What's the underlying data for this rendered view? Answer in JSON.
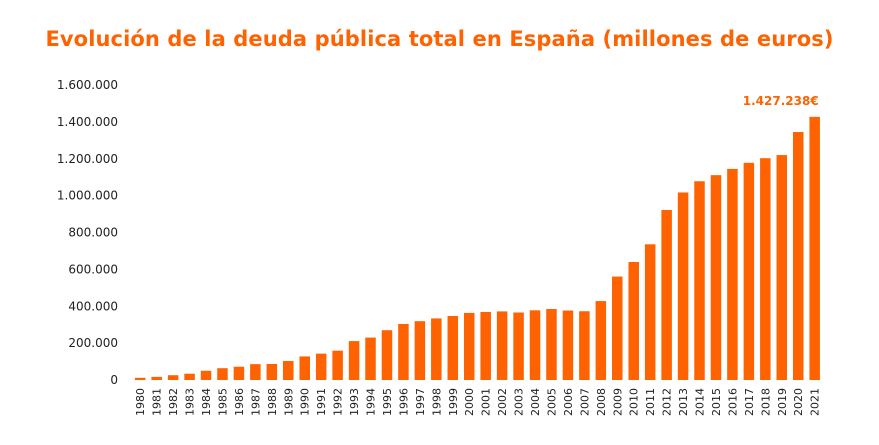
{
  "chart_data": {
    "type": "bar",
    "title": "Evolución de la deuda pública total en España (millones de euros)",
    "xlabel": "",
    "ylabel": "",
    "ylim": [
      0,
      1600000
    ],
    "yticks": [
      0,
      200000,
      400000,
      600000,
      800000,
      1000000,
      1200000,
      1400000,
      1600000
    ],
    "ytick_labels": [
      "0",
      "200.000",
      "400.000",
      "600.000",
      "800.000",
      "1.000.000",
      "1.200.000",
      "1.400.000",
      "1.600.000"
    ],
    "grid": false,
    "bar_color": "#ff6200",
    "categories": [
      "1980",
      "1981",
      "1982",
      "1983",
      "1984",
      "1985",
      "1986",
      "1987",
      "1988",
      "1989",
      "1990",
      "1991",
      "1992",
      "1993",
      "1994",
      "1995",
      "1996",
      "1997",
      "1998",
      "1999",
      "2000",
      "2001",
      "2002",
      "2003",
      "2004",
      "2005",
      "2006",
      "2007",
      "2008",
      "2009",
      "2010",
      "2011",
      "2012",
      "2013",
      "2014",
      "2015",
      "2016",
      "2017",
      "2018",
      "2019",
      "2020",
      "2021"
    ],
    "values": [
      12000,
      17000,
      26000,
      34000,
      50000,
      64000,
      72000,
      86000,
      87000,
      103000,
      128000,
      143000,
      159000,
      211000,
      230000,
      270000,
      304000,
      319000,
      334000,
      347000,
      364000,
      369000,
      372000,
      366000,
      378000,
      385000,
      377000,
      373000,
      428000,
      561000,
      640000,
      736000,
      922000,
      1017000,
      1078000,
      1111000,
      1145000,
      1178000,
      1203000,
      1220000,
      1345000,
      1427238
    ],
    "annotations": [
      {
        "category": "2021",
        "text": "1.427.238€"
      }
    ]
  }
}
